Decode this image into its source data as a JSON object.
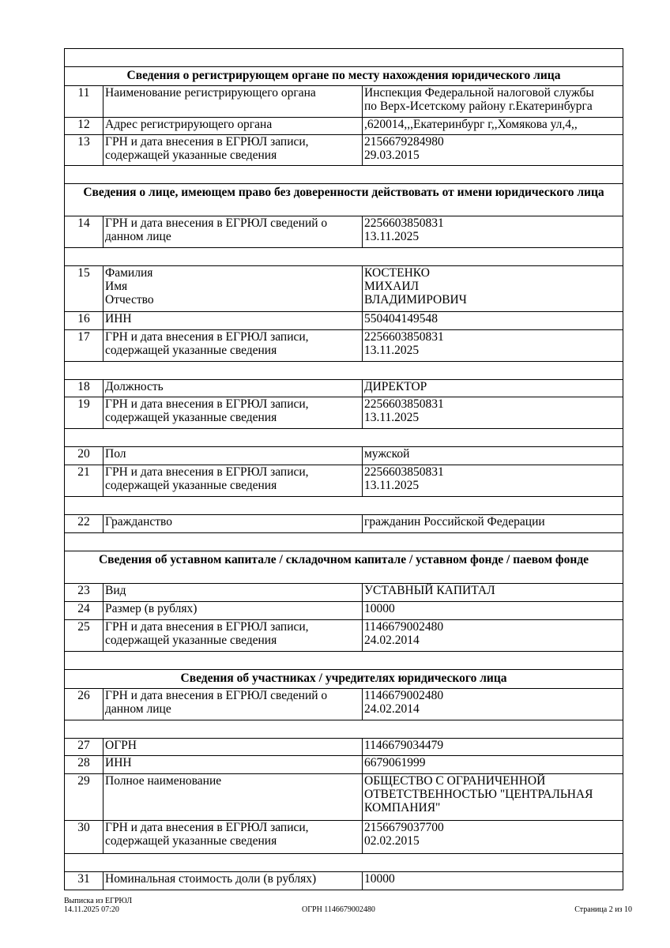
{
  "rows": [
    {
      "type": "blank"
    },
    {
      "type": "section",
      "text": "Сведения о регистрирующем органе по месту нахождения юридического лица"
    },
    {
      "type": "row",
      "num": "11",
      "label": "Наименование регистрирующего органа",
      "value": "Инспекция Федеральной налоговой службы\nпо Верх-Исетскому району г.Екатеринбурга"
    },
    {
      "type": "row",
      "num": "12",
      "label": "Адрес регистрирующего органа",
      "value": ",620014,,,Екатеринбург г,,Хомякова ул,4,,"
    },
    {
      "type": "row",
      "num": "13",
      "label": "ГРН и дата внесения в ЕГРЮЛ записи,\nсодержащей указанные сведения",
      "value": "2156679284980\n29.03.2015"
    },
    {
      "type": "blank"
    },
    {
      "type": "section",
      "text": "Сведения о лице, имеющем право без доверенности действовать от имени юридического лица"
    },
    {
      "type": "row",
      "num": "14",
      "label": "ГРН и дата внесения в ЕГРЮЛ сведений о\nданном лице",
      "value": "2256603850831\n13.11.2025"
    },
    {
      "type": "blank"
    },
    {
      "type": "row",
      "num": "15",
      "label": "Фамилия\nИмя\nОтчество",
      "value": "КОСТЕНКО\nМИХАИЛ\nВЛАДИМИРОВИЧ"
    },
    {
      "type": "row",
      "num": "16",
      "label": "ИНН",
      "value": "550404149548"
    },
    {
      "type": "row",
      "num": "17",
      "label": "ГРН и дата внесения в ЕГРЮЛ записи,\nсодержащей указанные сведения",
      "value": "2256603850831\n13.11.2025"
    },
    {
      "type": "blank"
    },
    {
      "type": "row",
      "num": "18",
      "label": "Должность",
      "value": "ДИРЕКТОР"
    },
    {
      "type": "row",
      "num": "19",
      "label": "ГРН и дата внесения в ЕГРЮЛ записи,\nсодержащей указанные сведения",
      "value": "2256603850831\n13.11.2025"
    },
    {
      "type": "blank"
    },
    {
      "type": "row",
      "num": "20",
      "label": "Пол",
      "value": "мужской"
    },
    {
      "type": "row",
      "num": "21",
      "label": "ГРН и дата внесения в ЕГРЮЛ записи,\nсодержащей указанные сведения",
      "value": "2256603850831\n13.11.2025"
    },
    {
      "type": "blank"
    },
    {
      "type": "row",
      "num": "22",
      "label": "Гражданство",
      "value": "гражданин Российской Федерации"
    },
    {
      "type": "blank"
    },
    {
      "type": "section",
      "text": "Сведения об уставном капитале / складочном капитале / уставном фонде / паевом фонде"
    },
    {
      "type": "row",
      "num": "23",
      "label": "Вид",
      "value": "УСТАВНЫЙ КАПИТАЛ"
    },
    {
      "type": "row",
      "num": "24",
      "label": "Размер (в рублях)",
      "value": "10000"
    },
    {
      "type": "row",
      "num": "25",
      "label": "ГРН и дата внесения в ЕГРЮЛ записи,\nсодержащей указанные сведения",
      "value": "1146679002480\n24.02.2014"
    },
    {
      "type": "blank"
    },
    {
      "type": "section",
      "text": "Сведения об участниках / учредителях юридического лица"
    },
    {
      "type": "row",
      "num": "26",
      "label": "ГРН и дата внесения в ЕГРЮЛ сведений о\nданном лице",
      "value": "1146679002480\n24.02.2014"
    },
    {
      "type": "blank"
    },
    {
      "type": "row",
      "num": "27",
      "label": "ОГРН",
      "value": "1146679034479"
    },
    {
      "type": "row",
      "num": "28",
      "label": "ИНН",
      "value": "6679061999"
    },
    {
      "type": "row",
      "num": "29",
      "label": "Полное наименование",
      "value": "ОБЩЕСТВО С ОГРАНИЧЕННОЙ\nОТВЕТСТВЕННОСТЬЮ \"ЦЕНТРАЛЬНАЯ\nКОМПАНИЯ\""
    },
    {
      "type": "row",
      "num": "30",
      "label": "ГРН и дата внесения в ЕГРЮЛ записи,\nсодержащей указанные сведения",
      "value": "2156679037700\n02.02.2015"
    },
    {
      "type": "blank"
    },
    {
      "type": "row",
      "num": "31",
      "label": "Номинальная стоимость доли (в рублях)",
      "value": "10000"
    }
  ],
  "footer": {
    "doc_title": "Выписка из ЕГРЮЛ",
    "datetime": "14.11.2025 07:20",
    "ogrn": "ОГРН 1146679002480",
    "page": "Страница 2 из 10"
  }
}
